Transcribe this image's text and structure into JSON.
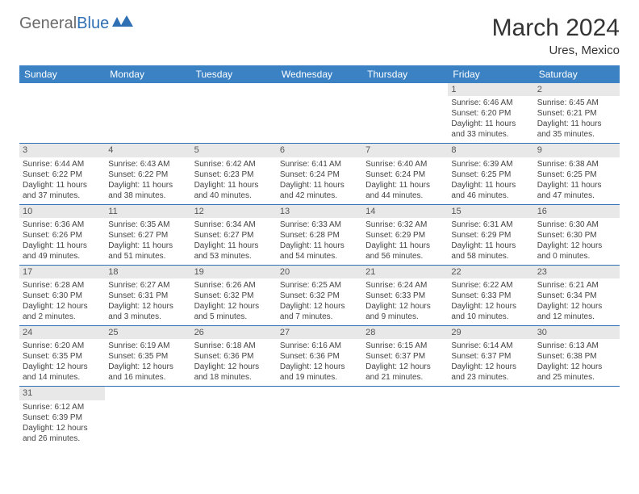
{
  "logo": {
    "general": "General",
    "blue": "Blue"
  },
  "title": "March 2024",
  "location": "Ures, Mexico",
  "colors": {
    "header_bg": "#3b82c4",
    "header_text": "#ffffff",
    "daynum_bg": "#e8e8e8",
    "row_border": "#2f6fb3",
    "text": "#333333",
    "logo_general": "#6a6a6a",
    "logo_blue": "#2f6fb3"
  },
  "weekdays": [
    "Sunday",
    "Monday",
    "Tuesday",
    "Wednesday",
    "Thursday",
    "Friday",
    "Saturday"
  ],
  "weeks": [
    [
      null,
      null,
      null,
      null,
      null,
      {
        "n": "1",
        "sr": "Sunrise: 6:46 AM",
        "ss": "Sunset: 6:20 PM",
        "dl": "Daylight: 11 hours and 33 minutes."
      },
      {
        "n": "2",
        "sr": "Sunrise: 6:45 AM",
        "ss": "Sunset: 6:21 PM",
        "dl": "Daylight: 11 hours and 35 minutes."
      }
    ],
    [
      {
        "n": "3",
        "sr": "Sunrise: 6:44 AM",
        "ss": "Sunset: 6:22 PM",
        "dl": "Daylight: 11 hours and 37 minutes."
      },
      {
        "n": "4",
        "sr": "Sunrise: 6:43 AM",
        "ss": "Sunset: 6:22 PM",
        "dl": "Daylight: 11 hours and 38 minutes."
      },
      {
        "n": "5",
        "sr": "Sunrise: 6:42 AM",
        "ss": "Sunset: 6:23 PM",
        "dl": "Daylight: 11 hours and 40 minutes."
      },
      {
        "n": "6",
        "sr": "Sunrise: 6:41 AM",
        "ss": "Sunset: 6:24 PM",
        "dl": "Daylight: 11 hours and 42 minutes."
      },
      {
        "n": "7",
        "sr": "Sunrise: 6:40 AM",
        "ss": "Sunset: 6:24 PM",
        "dl": "Daylight: 11 hours and 44 minutes."
      },
      {
        "n": "8",
        "sr": "Sunrise: 6:39 AM",
        "ss": "Sunset: 6:25 PM",
        "dl": "Daylight: 11 hours and 46 minutes."
      },
      {
        "n": "9",
        "sr": "Sunrise: 6:38 AM",
        "ss": "Sunset: 6:25 PM",
        "dl": "Daylight: 11 hours and 47 minutes."
      }
    ],
    [
      {
        "n": "10",
        "sr": "Sunrise: 6:36 AM",
        "ss": "Sunset: 6:26 PM",
        "dl": "Daylight: 11 hours and 49 minutes."
      },
      {
        "n": "11",
        "sr": "Sunrise: 6:35 AM",
        "ss": "Sunset: 6:27 PM",
        "dl": "Daylight: 11 hours and 51 minutes."
      },
      {
        "n": "12",
        "sr": "Sunrise: 6:34 AM",
        "ss": "Sunset: 6:27 PM",
        "dl": "Daylight: 11 hours and 53 minutes."
      },
      {
        "n": "13",
        "sr": "Sunrise: 6:33 AM",
        "ss": "Sunset: 6:28 PM",
        "dl": "Daylight: 11 hours and 54 minutes."
      },
      {
        "n": "14",
        "sr": "Sunrise: 6:32 AM",
        "ss": "Sunset: 6:29 PM",
        "dl": "Daylight: 11 hours and 56 minutes."
      },
      {
        "n": "15",
        "sr": "Sunrise: 6:31 AM",
        "ss": "Sunset: 6:29 PM",
        "dl": "Daylight: 11 hours and 58 minutes."
      },
      {
        "n": "16",
        "sr": "Sunrise: 6:30 AM",
        "ss": "Sunset: 6:30 PM",
        "dl": "Daylight: 12 hours and 0 minutes."
      }
    ],
    [
      {
        "n": "17",
        "sr": "Sunrise: 6:28 AM",
        "ss": "Sunset: 6:30 PM",
        "dl": "Daylight: 12 hours and 2 minutes."
      },
      {
        "n": "18",
        "sr": "Sunrise: 6:27 AM",
        "ss": "Sunset: 6:31 PM",
        "dl": "Daylight: 12 hours and 3 minutes."
      },
      {
        "n": "19",
        "sr": "Sunrise: 6:26 AM",
        "ss": "Sunset: 6:32 PM",
        "dl": "Daylight: 12 hours and 5 minutes."
      },
      {
        "n": "20",
        "sr": "Sunrise: 6:25 AM",
        "ss": "Sunset: 6:32 PM",
        "dl": "Daylight: 12 hours and 7 minutes."
      },
      {
        "n": "21",
        "sr": "Sunrise: 6:24 AM",
        "ss": "Sunset: 6:33 PM",
        "dl": "Daylight: 12 hours and 9 minutes."
      },
      {
        "n": "22",
        "sr": "Sunrise: 6:22 AM",
        "ss": "Sunset: 6:33 PM",
        "dl": "Daylight: 12 hours and 10 minutes."
      },
      {
        "n": "23",
        "sr": "Sunrise: 6:21 AM",
        "ss": "Sunset: 6:34 PM",
        "dl": "Daylight: 12 hours and 12 minutes."
      }
    ],
    [
      {
        "n": "24",
        "sr": "Sunrise: 6:20 AM",
        "ss": "Sunset: 6:35 PM",
        "dl": "Daylight: 12 hours and 14 minutes."
      },
      {
        "n": "25",
        "sr": "Sunrise: 6:19 AM",
        "ss": "Sunset: 6:35 PM",
        "dl": "Daylight: 12 hours and 16 minutes."
      },
      {
        "n": "26",
        "sr": "Sunrise: 6:18 AM",
        "ss": "Sunset: 6:36 PM",
        "dl": "Daylight: 12 hours and 18 minutes."
      },
      {
        "n": "27",
        "sr": "Sunrise: 6:16 AM",
        "ss": "Sunset: 6:36 PM",
        "dl": "Daylight: 12 hours and 19 minutes."
      },
      {
        "n": "28",
        "sr": "Sunrise: 6:15 AM",
        "ss": "Sunset: 6:37 PM",
        "dl": "Daylight: 12 hours and 21 minutes."
      },
      {
        "n": "29",
        "sr": "Sunrise: 6:14 AM",
        "ss": "Sunset: 6:37 PM",
        "dl": "Daylight: 12 hours and 23 minutes."
      },
      {
        "n": "30",
        "sr": "Sunrise: 6:13 AM",
        "ss": "Sunset: 6:38 PM",
        "dl": "Daylight: 12 hours and 25 minutes."
      }
    ],
    [
      {
        "n": "31",
        "sr": "Sunrise: 6:12 AM",
        "ss": "Sunset: 6:39 PM",
        "dl": "Daylight: 12 hours and 26 minutes."
      },
      null,
      null,
      null,
      null,
      null,
      null
    ]
  ]
}
